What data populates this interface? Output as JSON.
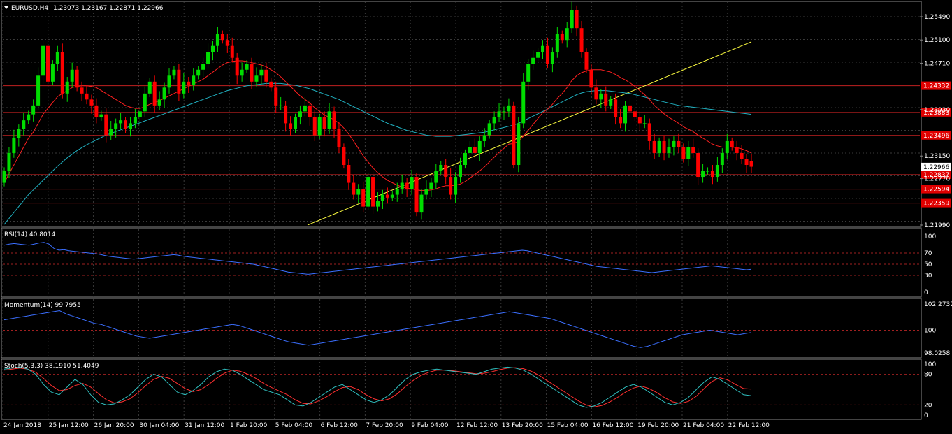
{
  "header": {
    "symbol": "EURUSD,H4",
    "ohlc": "1.23073 1.23167 1.22871 1.22966"
  },
  "price_axis": {
    "ticks": [
      "1.25490",
      "1.25100",
      "1.24710",
      "1.23930",
      "1.23150",
      "1.22770",
      "1.21990"
    ],
    "current_price": "1.22966"
  },
  "levels": [
    {
      "label": "1.24332",
      "price": 1.24332
    },
    {
      "label": "1.23883",
      "price": 1.23883
    },
    {
      "label": "1.23496",
      "price": 1.23496
    },
    {
      "label": "1.22837",
      "price": 1.22837
    },
    {
      "label": "1.22594",
      "price": 1.22594
    },
    {
      "label": "1.22359",
      "price": 1.22359
    }
  ],
  "time_axis": [
    "24 Jan 2018",
    "25 Jan 12:00",
    "26 Jan 20:00",
    "30 Jan 04:00",
    "31 Jan 12:00",
    "1 Feb 20:00",
    "5 Feb 04:00",
    "6 Feb 12:00",
    "7 Feb 20:00",
    "9 Feb 04:00",
    "12 Feb 12:00",
    "13 Feb 20:00",
    "15 Feb 04:00",
    "16 Feb 12:00",
    "19 Feb 20:00",
    "21 Feb 04:00",
    "22 Feb 12:00"
  ],
  "rsi": {
    "label": "RSI(14) 40.8014",
    "ticks": [
      "100",
      "70",
      "50",
      "30",
      "0"
    ]
  },
  "momentum": {
    "label": "Momentum(14) 99.7955",
    "ticks": [
      "102.2737",
      "100",
      "98.0258"
    ]
  },
  "stoch": {
    "label": "Stoch(5,3,3) 38.1910 51.4049",
    "ticks": [
      "100",
      "80",
      "20",
      "0"
    ]
  },
  "colors": {
    "background": "#000000",
    "grid": "#3a3a3a",
    "bull": "#00dd00",
    "bear": "#ff0000",
    "fast_ma": "#ff2020",
    "mid_ma": "#20b0c0",
    "slow_ma": "#ffff40",
    "level_line": "#c02020",
    "indicator": "#3b6fff",
    "stoch_signal": "#ff3030",
    "stoch_main": "#30c0c0"
  },
  "chart_data": {
    "type": "candlestick",
    "close": [
      1.229,
      1.232,
      1.2345,
      1.236,
      1.2375,
      1.2385,
      1.24,
      1.245,
      1.25,
      1.244,
      1.247,
      1.249,
      1.242,
      1.244,
      1.246,
      1.243,
      1.242,
      1.241,
      1.24,
      1.238,
      1.2385,
      1.235,
      1.236,
      1.237,
      1.2375,
      1.236,
      1.237,
      1.238,
      1.239,
      1.242,
      1.244,
      1.24,
      1.241,
      1.243,
      1.245,
      1.246,
      1.242,
      1.244,
      1.2435,
      1.245,
      1.246,
      1.247,
      1.249,
      1.25,
      1.252,
      1.251,
      1.25,
      1.248,
      1.245,
      1.246,
      1.247,
      1.244,
      1.245,
      1.246,
      1.244,
      1.243,
      1.24,
      1.24,
      1.237,
      1.236,
      1.238,
      1.239,
      1.24,
      1.238,
      1.235,
      1.238,
      1.236,
      1.239,
      1.236,
      1.233,
      1.23,
      1.227,
      1.225,
      1.226,
      1.223,
      1.228,
      1.223,
      1.224,
      1.225,
      1.2245,
      1.225,
      1.226,
      1.227,
      1.226,
      1.228,
      1.222,
      1.225,
      1.226,
      1.227,
      1.229,
      1.23,
      1.228,
      1.225,
      1.228,
      1.23,
      1.232,
      1.233,
      1.232,
      1.234,
      1.235,
      1.237,
      1.238,
      1.239,
      1.239,
      1.24,
      1.23,
      1.237,
      1.244,
      1.247,
      1.248,
      1.249,
      1.25,
      1.247,
      1.249,
      1.252,
      1.251,
      1.253,
      1.256,
      1.253,
      1.249,
      1.246,
      1.243,
      1.241,
      1.242,
      1.24,
      1.241,
      1.238,
      1.237,
      1.24,
      1.239,
      1.238,
      1.237,
      1.237,
      1.234,
      1.232,
      1.234,
      1.232,
      1.233,
      1.234,
      1.233,
      1.231,
      1.233,
      1.232,
      1.228,
      1.229,
      1.229,
      1.228,
      1.23,
      1.232,
      1.234,
      1.233,
      1.232,
      1.231,
      1.23,
      1.2297
    ],
    "open": [
      1.227,
      1.229,
      1.232,
      1.2345,
      1.236,
      1.2375,
      1.2385,
      1.24,
      1.245,
      1.25,
      1.244,
      1.247,
      1.249,
      1.242,
      1.244,
      1.246,
      1.243,
      1.242,
      1.241,
      1.24,
      1.238,
      1.2385,
      1.235,
      1.236,
      1.237,
      1.2375,
      1.236,
      1.237,
      1.238,
      1.239,
      1.242,
      1.244,
      1.24,
      1.241,
      1.243,
      1.245,
      1.246,
      1.242,
      1.244,
      1.2435,
      1.245,
      1.246,
      1.247,
      1.249,
      1.25,
      1.252,
      1.251,
      1.25,
      1.248,
      1.245,
      1.246,
      1.247,
      1.244,
      1.245,
      1.246,
      1.244,
      1.243,
      1.24,
      1.24,
      1.237,
      1.236,
      1.238,
      1.239,
      1.24,
      1.238,
      1.235,
      1.238,
      1.236,
      1.239,
      1.236,
      1.233,
      1.23,
      1.227,
      1.225,
      1.226,
      1.223,
      1.228,
      1.223,
      1.224,
      1.225,
      1.2245,
      1.225,
      1.226,
      1.227,
      1.226,
      1.228,
      1.222,
      1.225,
      1.226,
      1.227,
      1.229,
      1.23,
      1.228,
      1.225,
      1.228,
      1.23,
      1.232,
      1.233,
      1.232,
      1.234,
      1.235,
      1.237,
      1.238,
      1.239,
      1.239,
      1.24,
      1.23,
      1.237,
      1.244,
      1.247,
      1.248,
      1.249,
      1.25,
      1.247,
      1.249,
      1.252,
      1.251,
      1.253,
      1.256,
      1.253,
      1.249,
      1.246,
      1.243,
      1.241,
      1.242,
      1.24,
      1.241,
      1.238,
      1.237,
      1.24,
      1.239,
      1.238,
      1.237,
      1.237,
      1.234,
      1.232,
      1.234,
      1.232,
      1.233,
      1.234,
      1.233,
      1.231,
      1.233,
      1.232,
      1.228,
      1.229,
      1.229,
      1.228,
      1.23,
      1.232,
      1.234,
      1.233,
      1.232,
      1.231,
      1.2307
    ],
    "ma_fast": [
      1.227,
      1.2285,
      1.23,
      1.2315,
      1.233,
      1.2345,
      1.2355,
      1.237,
      1.2385,
      1.2395,
      1.2405,
      1.2415,
      1.242,
      1.2425,
      1.243,
      1.2432,
      1.2433,
      1.2433,
      1.2432,
      1.243,
      1.2425,
      1.242,
      1.2415,
      1.241,
      1.2405,
      1.24,
      1.2397,
      1.2395,
      1.2395,
      1.2398,
      1.2402,
      1.2405,
      1.2408,
      1.2412,
      1.2416,
      1.242,
      1.2424,
      1.2428,
      1.2432,
      1.2436,
      1.244,
      1.2444,
      1.245,
      1.2456,
      1.2462,
      1.2468,
      1.2472,
      1.2474,
      1.2475,
      1.2475,
      1.2474,
      1.2472,
      1.247,
      1.2468,
      1.2465,
      1.246,
      1.2455,
      1.2448,
      1.244,
      1.2432,
      1.2424,
      1.2416,
      1.241,
      1.2404,
      1.2396,
      1.239,
      1.2384,
      1.238,
      1.2376,
      1.237,
      1.2362,
      1.2352,
      1.234,
      1.2328,
      1.2315,
      1.2305,
      1.2295,
      1.2287,
      1.228,
      1.2274,
      1.227,
      1.2266,
      1.2263,
      1.2261,
      1.226,
      1.2258,
      1.2257,
      1.2257,
      1.2258,
      1.226,
      1.2263,
      1.2265,
      1.2265,
      1.2266,
      1.2268,
      1.2272,
      1.2278,
      1.2284,
      1.229,
      1.2297,
      1.2305,
      1.2313,
      1.2321,
      1.2328,
      1.2335,
      1.2336,
      1.234,
      1.2348,
      1.2358,
      1.2368,
      1.2378,
      1.2388,
      1.2394,
      1.2402,
      1.2412,
      1.242,
      1.243,
      1.2442,
      1.245,
      1.2455,
      1.2458,
      1.246,
      1.246,
      1.246,
      1.2458,
      1.2456,
      1.2452,
      1.2447,
      1.2443,
      1.2438,
      1.2432,
      1.2425,
      1.2418,
      1.241,
      1.24,
      1.2393,
      1.2386,
      1.238,
      1.2375,
      1.237,
      1.2364,
      1.236,
      1.2356,
      1.235,
      1.2345,
      1.234,
      1.2335,
      1.2332,
      1.233,
      1.233,
      1.233,
      1.2329,
      1.2327,
      1.2324,
      1.232
    ],
    "ma_mid": [
      1.22,
      1.221,
      1.222,
      1.223,
      1.224,
      1.225,
      1.2258,
      1.2266,
      1.2274,
      1.2282,
      1.229,
      1.2298,
      1.2305,
      1.2312,
      1.2318,
      1.2324,
      1.2329,
      1.2334,
      1.2338,
      1.2342,
      1.2346,
      1.235,
      1.2353,
      1.2356,
      1.2359,
      1.2362,
      1.2365,
      1.2368,
      1.2371,
      1.2374,
      1.2377,
      1.238,
      1.2383,
      1.2386,
      1.2389,
      1.2392,
      1.2395,
      1.2398,
      1.2401,
      1.2404,
      1.2407,
      1.241,
      1.2413,
      1.2416,
      1.2419,
      1.2422,
      1.2425,
      1.2427,
      1.2429,
      1.2431,
      1.2433,
      1.2434,
      1.2435,
      1.2436,
      1.2437,
      1.2437,
      1.2437,
      1.2437,
      1.2436,
      1.2435,
      1.2434,
      1.2432,
      1.243,
      1.2428,
      1.2425,
      1.2422,
      1.2419,
      1.2416,
      1.2413,
      1.241,
      1.2406,
      1.2402,
      1.2398,
      1.2394,
      1.239,
      1.2386,
      1.2382,
      1.2378,
      1.2374,
      1.237,
      1.2367,
      1.2364,
      1.2361,
      1.2358,
      1.2356,
      1.2354,
      1.2352,
      1.235,
      1.2349,
      1.2348,
      1.2348,
      1.2348,
      1.2348,
      1.2349,
      1.235,
      1.2351,
      1.2352,
      1.2353,
      1.2354,
      1.2355,
      1.2357,
      1.2359,
      1.2361,
      1.2363,
      1.2365,
      1.2367,
      1.237,
      1.2374,
      1.2378,
      1.2382,
      1.2386,
      1.239,
      1.2394,
      1.2398,
      1.2402,
      1.2406,
      1.241,
      1.2414,
      1.2418,
      1.2421,
      1.2423,
      1.2424,
      1.2425,
      1.2425,
      1.2425,
      1.2424,
      1.2423,
      1.2422,
      1.2421,
      1.242,
      1.2418,
      1.2416,
      1.2414,
      1.2412,
      1.241,
      1.2408,
      1.2406,
      1.2404,
      1.2402,
      1.24,
      1.2399,
      1.2398,
      1.2397,
      1.2396,
      1.2395,
      1.2394,
      1.2393,
      1.2392,
      1.2391,
      1.239,
      1.2389,
      1.2388,
      1.2387,
      1.2386,
      1.2385
    ],
    "ma_slow": [
      1.2199,
      1.2201,
      1.2203,
      1.2205,
      1.2207,
      1.2209,
      1.2211,
      1.2213,
      1.2215,
      1.2217,
      1.2219,
      1.2221,
      1.2223,
      1.2225,
      1.2227,
      1.2229,
      1.2231,
      1.2233,
      1.2235,
      1.2237,
      1.2239,
      1.2241,
      1.2243,
      1.2245,
      1.2247,
      1.2249,
      1.2251,
      1.2253,
      1.2255,
      1.2257,
      1.2259,
      1.2261,
      1.2263,
      1.2265,
      1.2267,
      1.2269,
      1.2271,
      1.2273,
      1.2275,
      1.2277,
      1.2279,
      1.2281,
      1.2283,
      1.2285,
      1.2287,
      1.2289,
      1.2291,
      1.2293,
      1.2295,
      1.2297,
      1.2299,
      1.2301,
      1.2303,
      1.2305,
      1.2307,
      1.2309,
      1.2311,
      1.2313,
      1.2315,
      1.2317,
      1.2319,
      1.2321,
      1.2323,
      1.2325,
      1.2327,
      1.2329,
      1.2331,
      1.2333,
      1.2335,
      1.2337,
      1.2339,
      1.2341,
      1.2343,
      1.2345,
      1.2347,
      1.2349,
      1.2351,
      1.2353,
      1.2355,
      1.2357,
      1.2359,
      1.2361,
      1.2363,
      1.2365,
      1.2367,
      1.2369,
      1.2371,
      1.2373,
      1.2375,
      1.2377,
      1.2379,
      1.2381,
      1.2383,
      1.2385,
      1.2387,
      1.2389,
      1.2391,
      1.2393,
      1.2395,
      1.2397,
      1.2399,
      1.2401,
      1.2403,
      1.2405,
      1.2407,
      1.2409,
      1.2411,
      1.2413,
      1.2415,
      1.2417,
      1.2419,
      1.2421,
      1.2423,
      1.2425,
      1.2427,
      1.2429,
      1.2431,
      1.2433,
      1.2435,
      1.2437,
      1.2439,
      1.2441,
      1.2443,
      1.2445,
      1.2447,
      1.2449,
      1.2451,
      1.2453,
      1.2455,
      1.2457,
      1.2459,
      1.2461,
      1.2463,
      1.2465,
      1.2467,
      1.2469,
      1.2471,
      1.2473,
      1.2475,
      1.2477,
      1.2479,
      1.2481,
      1.2483,
      1.2485,
      1.2487,
      1.2489,
      1.2491,
      1.2493,
      1.2495,
      1.2497,
      1.2499,
      1.2501,
      1.2503,
      1.2505,
      1.2507
    ],
    "rsi": [
      84,
      86,
      87,
      86,
      85,
      84,
      86,
      88,
      89,
      86,
      78,
      75,
      76,
      74,
      73,
      72,
      71,
      70,
      69,
      68,
      66,
      64,
      63,
      62,
      61,
      60,
      59,
      60,
      61,
      62,
      63,
      64,
      65,
      66,
      67,
      66,
      64,
      63,
      62,
      61,
      60,
      59,
      58,
      57,
      56,
      55,
      54,
      53,
      52,
      51,
      50,
      48,
      46,
      44,
      42,
      40,
      38,
      36,
      35,
      34,
      33,
      32,
      33,
      34,
      35,
      36,
      37,
      38,
      39,
      40,
      41,
      42,
      43,
      44,
      45,
      46,
      47,
      48,
      49,
      50,
      51,
      52,
      53,
      54,
      55,
      56,
      57,
      58,
      59,
      60,
      61,
      62,
      63,
      64,
      65,
      66,
      67,
      68,
      69,
      70,
      71,
      72,
      73,
      74,
      75,
      74,
      72,
      70,
      68,
      66,
      64,
      62,
      60,
      58,
      56,
      54,
      52,
      50,
      48,
      46,
      45,
      44,
      43,
      42,
      41,
      40,
      39,
      38,
      37,
      36,
      35,
      36,
      37,
      38,
      39,
      40,
      41,
      42,
      43,
      44,
      45,
      46,
      47,
      46,
      45,
      44,
      43,
      42,
      41,
      40,
      41
    ],
    "momentum": [
      100.9,
      101.0,
      101.1,
      101.2,
      101.3,
      101.4,
      101.5,
      101.6,
      101.7,
      101.4,
      101.2,
      101.0,
      100.8,
      100.6,
      100.5,
      100.3,
      100.1,
      99.9,
      99.7,
      99.5,
      99.4,
      99.3,
      99.4,
      99.5,
      99.6,
      99.7,
      99.8,
      99.9,
      100.0,
      100.1,
      100.2,
      100.3,
      100.4,
      100.5,
      100.4,
      100.2,
      100.0,
      99.8,
      99.6,
      99.4,
      99.2,
      99.0,
      98.9,
      98.8,
      98.7,
      98.8,
      98.9,
      99.0,
      99.1,
      99.2,
      99.3,
      99.4,
      99.5,
      99.6,
      99.7,
      99.8,
      99.9,
      100.0,
      100.1,
      100.2,
      100.3,
      100.4,
      100.5,
      100.6,
      100.7,
      100.8,
      100.9,
      101.0,
      101.1,
      101.2,
      101.3,
      101.4,
      101.5,
      101.6,
      101.5,
      101.4,
      101.3,
      101.2,
      101.1,
      101.0,
      100.8,
      100.6,
      100.4,
      100.2,
      100.0,
      99.8,
      99.6,
      99.4,
      99.2,
      99.0,
      98.8,
      98.6,
      98.5,
      98.6,
      98.8,
      99.0,
      99.2,
      99.4,
      99.6,
      99.7,
      99.8,
      99.9,
      100.0,
      99.9,
      99.8,
      99.7,
      99.6,
      99.7,
      99.8
    ],
    "stoch_main": [
      90,
      92,
      94,
      90,
      80,
      60,
      45,
      40,
      55,
      70,
      60,
      40,
      25,
      20,
      22,
      30,
      40,
      55,
      70,
      80,
      75,
      60,
      45,
      40,
      48,
      60,
      75,
      85,
      90,
      88,
      80,
      70,
      60,
      50,
      45,
      40,
      30,
      20,
      18,
      25,
      35,
      45,
      55,
      60,
      50,
      40,
      30,
      25,
      30,
      40,
      55,
      70,
      80,
      85,
      88,
      90,
      88,
      86,
      84,
      82,
      80,
      85,
      90,
      92,
      94,
      92,
      88,
      80,
      70,
      60,
      50,
      40,
      30,
      20,
      15,
      18,
      25,
      35,
      45,
      55,
      60,
      55,
      45,
      35,
      25,
      20,
      25,
      35,
      50,
      65,
      75,
      70,
      60,
      50,
      40,
      38
    ],
    "stoch_signal": [
      88,
      90,
      92,
      90,
      84,
      72,
      58,
      48,
      50,
      58,
      62,
      55,
      42,
      30,
      24,
      26,
      32,
      44,
      58,
      70,
      76,
      72,
      62,
      52,
      46,
      50,
      60,
      72,
      82,
      88,
      86,
      80,
      72,
      62,
      54,
      47,
      40,
      30,
      23,
      22,
      28,
      36,
      46,
      54,
      56,
      50,
      40,
      32,
      28,
      32,
      42,
      56,
      68,
      78,
      84,
      88,
      88,
      87,
      85,
      83,
      81,
      82,
      85,
      89,
      92,
      93,
      91,
      86,
      78,
      68,
      58,
      48,
      38,
      28,
      20,
      16,
      19,
      26,
      35,
      45,
      53,
      57,
      52,
      44,
      34,
      26,
      23,
      27,
      37,
      52,
      66,
      73,
      69,
      60,
      52,
      51
    ]
  }
}
